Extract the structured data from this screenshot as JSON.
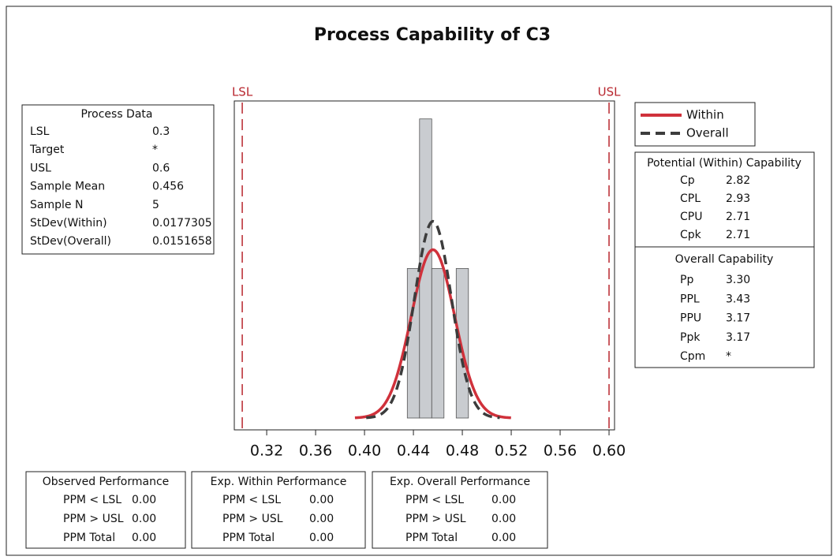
{
  "chart_data": {
    "type": "histogram",
    "title": "Process Capability of C3",
    "bins": [
      0.435,
      0.445,
      0.455,
      0.465,
      0.475,
      0.485
    ],
    "counts": [
      1,
      2,
      1,
      0,
      1
    ],
    "color": "#c9ccd0",
    "xlim": [
      0.2935,
      0.6045
    ],
    "ylim": [
      0,
      2.12
    ],
    "xticks": [
      0.32,
      0.36,
      {
        "value": 0.4,
        "label": "0.40"
      },
      0.44,
      0.48,
      0.52,
      0.56,
      {
        "value": 0.6,
        "label": "0.60"
      }
    ],
    "spec_labels": [
      "LSL",
      "USL"
    ],
    "spec_color": "#b8262e",
    "series": [
      {
        "name": "Within",
        "color": "#d0313b",
        "style": "solid"
      },
      {
        "name": "Overall",
        "color": "#3c3c3c",
        "style": "dashed"
      }
    ]
  },
  "process_data": {
    "title": "Process Data",
    "rows": [
      [
        "LSL",
        "0.3"
      ],
      [
        "Target",
        "*"
      ],
      [
        "USL",
        "0.6"
      ],
      [
        "Sample Mean",
        "0.456"
      ],
      [
        "Sample N",
        "5"
      ],
      [
        "StDev(Within)",
        "0.0177305"
      ],
      [
        "StDev(Overall)",
        "0.0151658"
      ]
    ]
  },
  "potential": {
    "title": "Potential (Within) Capability",
    "rows": [
      [
        "Cp",
        "2.82"
      ],
      [
        "CPL",
        "2.93"
      ],
      [
        "CPU",
        "2.71"
      ],
      [
        "Cpk",
        "2.71"
      ]
    ]
  },
  "overall": {
    "title": "Overall Capability",
    "rows": [
      [
        "Pp",
        "3.30"
      ],
      [
        "PPL",
        "3.43"
      ],
      [
        "PPU",
        "3.17"
      ],
      [
        "Ppk",
        "3.17"
      ],
      [
        "Cpm",
        "*"
      ]
    ]
  },
  "performance": [
    {
      "title": "Observed Performance",
      "rows": [
        [
          "PPM < LSL",
          "0.00"
        ],
        [
          "PPM > USL",
          "0.00"
        ],
        [
          "PPM Total",
          "0.00"
        ]
      ]
    },
    {
      "title": "Exp. Within Performance",
      "rows": [
        [
          "PPM < LSL",
          "0.00"
        ],
        [
          "PPM > USL",
          "0.00"
        ],
        [
          "PPM Total",
          "0.00"
        ]
      ]
    },
    {
      "title": "Exp. Overall Performance",
      "rows": [
        [
          "PPM < LSL",
          "0.00"
        ],
        [
          "PPM > USL",
          "0.00"
        ],
        [
          "PPM Total",
          "0.00"
        ]
      ]
    }
  ]
}
